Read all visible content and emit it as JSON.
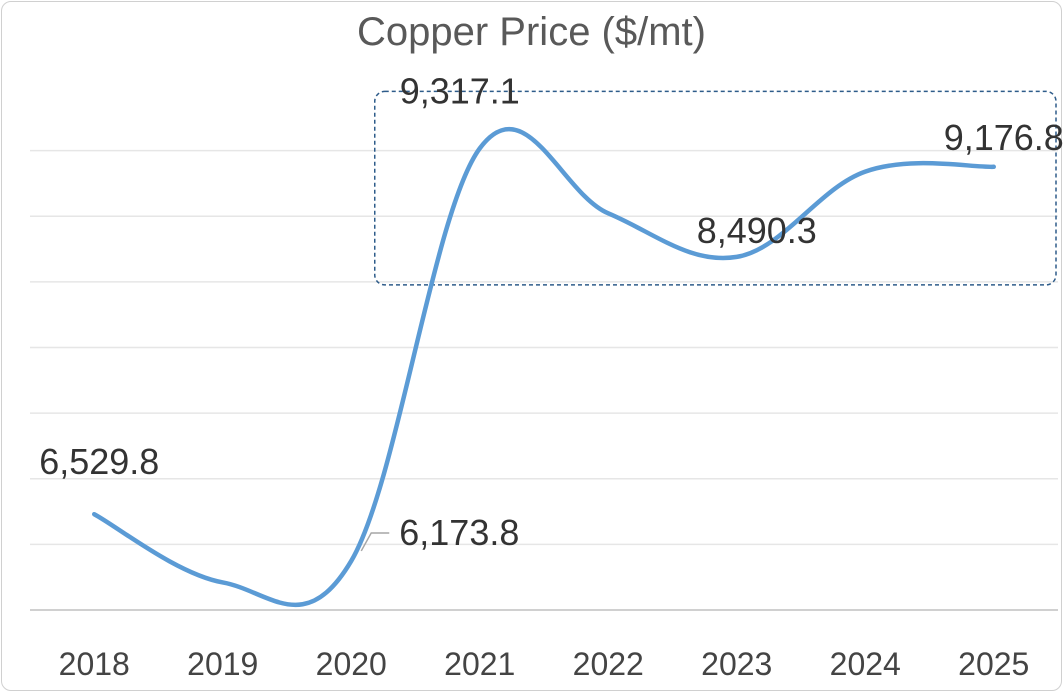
{
  "chart_data": {
    "type": "line",
    "title": "Copper Price ($/mt)",
    "categories": [
      "2018",
      "2019",
      "2020",
      "2021",
      "2022",
      "2023",
      "2024",
      "2025"
    ],
    "values": [
      6529.8,
      6010,
      6173.8,
      9317.1,
      8822,
      8490.3,
      9140,
      9176.8
    ],
    "data_labels": [
      {
        "index": 0,
        "text": "6,529.8"
      },
      {
        "index": 2,
        "text": "6,173.8"
      },
      {
        "index": 3,
        "text": "9,317.1"
      },
      {
        "index": 5,
        "text": "8,490.3"
      },
      {
        "index": 7,
        "text": "9,176.8"
      }
    ],
    "ylim": [
      5800,
      9800
    ],
    "grid": true,
    "line_color": "#5B9BD5",
    "highlight_box": {
      "from_index": 3,
      "to_index": 7,
      "color": "#2E5C8A"
    }
  }
}
